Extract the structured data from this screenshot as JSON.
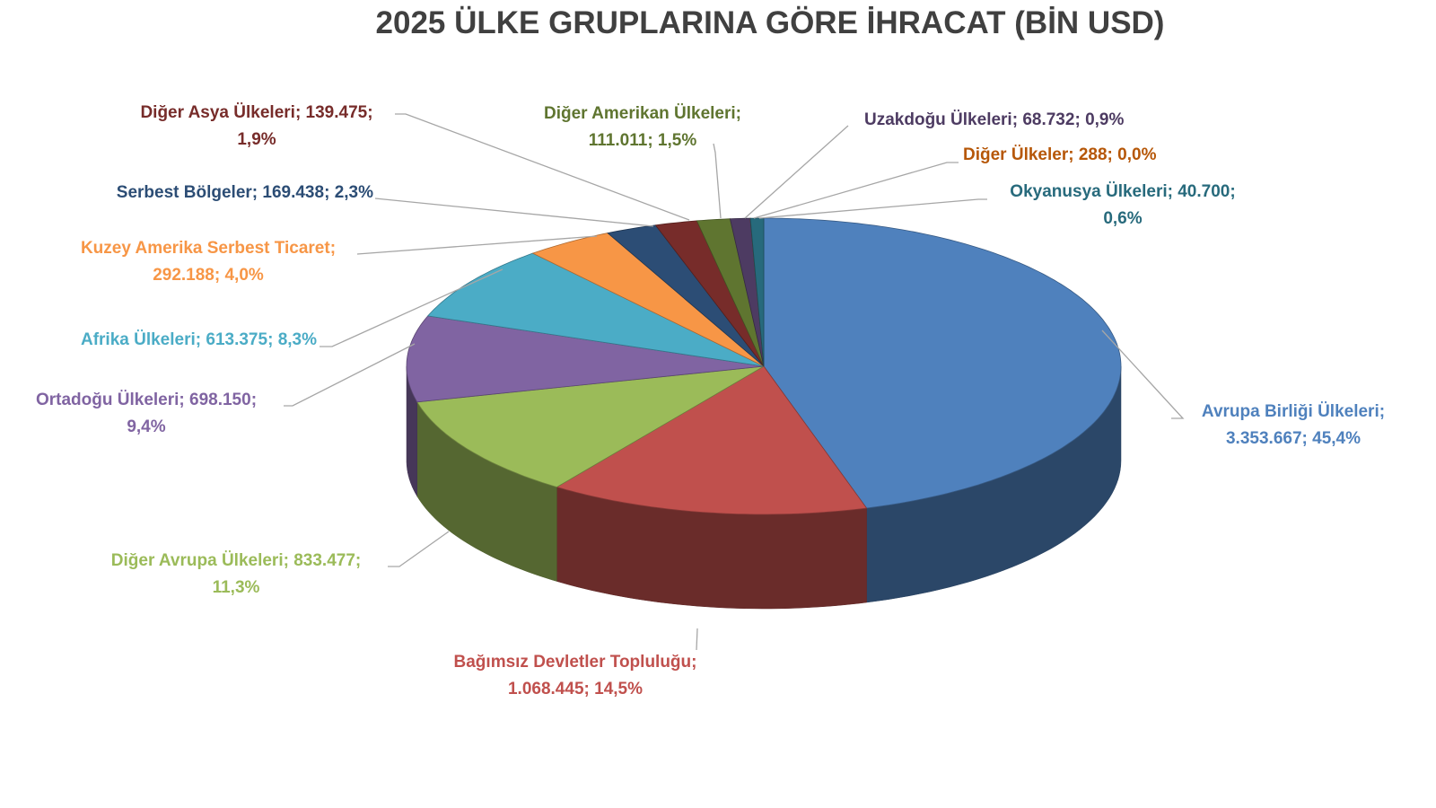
{
  "chart_data": {
    "type": "pie",
    "style": "3d",
    "title": "2025 ÜLKE GRUPLARINA GÖRE İHRACAT (BİN USD)",
    "slices": [
      {
        "name": "Avrupa Birliği Ülkeleri",
        "value": "3.353.667",
        "percent": "45,4%",
        "pct": 45.4,
        "color": "#4F81BD"
      },
      {
        "name": "Bağımsız Devletler Topluluğu",
        "value": "1.068.445",
        "percent": "14,5%",
        "pct": 14.5,
        "color": "#C0504D"
      },
      {
        "name": "Diğer Avrupa Ülkeleri",
        "value": "833.477",
        "percent": "11,3%",
        "pct": 11.3,
        "color": "#9BBB59"
      },
      {
        "name": "Ortadoğu Ülkeleri",
        "value": "698.150",
        "percent": "9,4%",
        "pct": 9.4,
        "color": "#8064A2"
      },
      {
        "name": "Afrika Ülkeleri",
        "value": "613.375",
        "percent": "8,3%",
        "pct": 8.3,
        "color": "#4BACC6"
      },
      {
        "name": "Kuzey Amerika Serbest Ticaret",
        "value": "292.188",
        "percent": "4,0%",
        "pct": 4.0,
        "color": "#F79646"
      },
      {
        "name": "Serbest Bölgeler",
        "value": "169.438",
        "percent": "2,3%",
        "pct": 2.3,
        "color": "#2C4D75"
      },
      {
        "name": "Diğer Asya Ülkeleri",
        "value": "139.475",
        "percent": "1,9%",
        "pct": 1.9,
        "color": "#772C2A"
      },
      {
        "name": "Diğer Amerikan Ülkeleri",
        "value": "111.011",
        "percent": "1,5%",
        "pct": 1.5,
        "color": "#5F7530"
      },
      {
        "name": "Uzakdoğu Ülkeleri",
        "value": "68.732",
        "percent": "0,9%",
        "pct": 0.9,
        "color": "#4D3B62"
      },
      {
        "name": "Diğer Ülkeler",
        "value": "288",
        "percent": "0,0%",
        "pct": 0.004,
        "color": "#B65708"
      },
      {
        "name": "Okyanusya Ülkeleri",
        "value": "40.700",
        "percent": "0,6%",
        "pct": 0.6,
        "color": "#276A7C"
      }
    ],
    "label_colors": [
      "#4F81BD",
      "#C0504D",
      "#9BBB59",
      "#8064A2",
      "#4BACC6",
      "#F79646",
      "#2C4D75",
      "#772C2A",
      "#5F7530",
      "#4D3B62",
      "#B65708",
      "#276A7C"
    ]
  }
}
